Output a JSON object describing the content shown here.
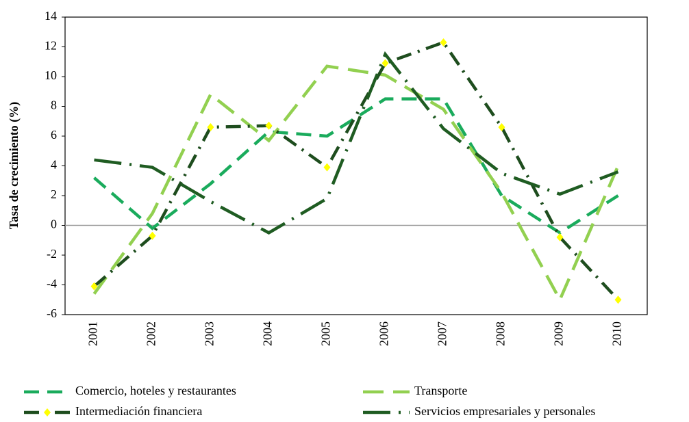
{
  "chart_data": {
    "type": "line",
    "y_label": "Tasa de crecimiento (%)",
    "categories": [
      "2001",
      "2002",
      "2003",
      "2004",
      "2005",
      "2006",
      "2007",
      "2008",
      "2009",
      "2010"
    ],
    "ylim": [
      -6,
      14
    ],
    "yticks": [
      -6,
      -4,
      -2,
      0,
      2,
      4,
      6,
      8,
      10,
      12,
      14
    ],
    "series": [
      {
        "name": "Comercio, hoteles y restaurantes",
        "color": "#1aab5c",
        "style": "dashed",
        "values": [
          3.2,
          -0.2,
          2.8,
          6.3,
          6.0,
          8.5,
          8.5,
          2.0,
          -0.5,
          2.0
        ]
      },
      {
        "name": "Transporte",
        "color": "#92d050",
        "style": "long-dashed",
        "values": [
          -4.6,
          0.8,
          8.8,
          5.7,
          10.7,
          10.1,
          7.8,
          2.2,
          -5.0,
          4.0
        ]
      },
      {
        "name": "Intermediación financiera",
        "color": "#1e4d1e",
        "style": "dash-dot",
        "marker": "diamond",
        "marker_color": "#ffff00",
        "values": [
          -4.1,
          -0.7,
          6.6,
          6.7,
          3.9,
          10.9,
          12.3,
          6.6,
          -0.8,
          -5.0
        ]
      },
      {
        "name": "Servicios empresariales y personales",
        "color": "#1f5c22",
        "style": "long-dash-dot",
        "values": [
          4.4,
          3.9,
          1.6,
          -0.5,
          1.8,
          11.5,
          6.5,
          3.5,
          2.1,
          3.6
        ]
      }
    ]
  }
}
